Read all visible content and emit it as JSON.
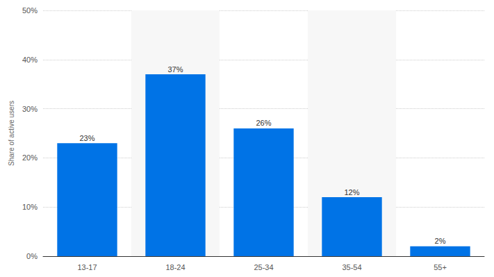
{
  "chart_data": {
    "type": "bar",
    "y_label": "Share of active users",
    "categories": [
      "13-17",
      "18-24",
      "25-34",
      "35-54",
      "55+"
    ],
    "values": [
      23,
      37,
      26,
      12,
      2
    ],
    "value_labels": [
      "23%",
      "37%",
      "26%",
      "12%",
      "2%"
    ],
    "color": "#0073e6",
    "ylim": [
      0,
      50
    ],
    "yticks": [
      {
        "value": 0,
        "label": "0%"
      },
      {
        "value": 10,
        "label": "10%"
      },
      {
        "value": 20,
        "label": "20%"
      },
      {
        "value": 30,
        "label": "30%"
      },
      {
        "value": 40,
        "label": "40%"
      },
      {
        "value": 50,
        "label": "50%"
      }
    ],
    "grid": true,
    "data_labels": true
  }
}
